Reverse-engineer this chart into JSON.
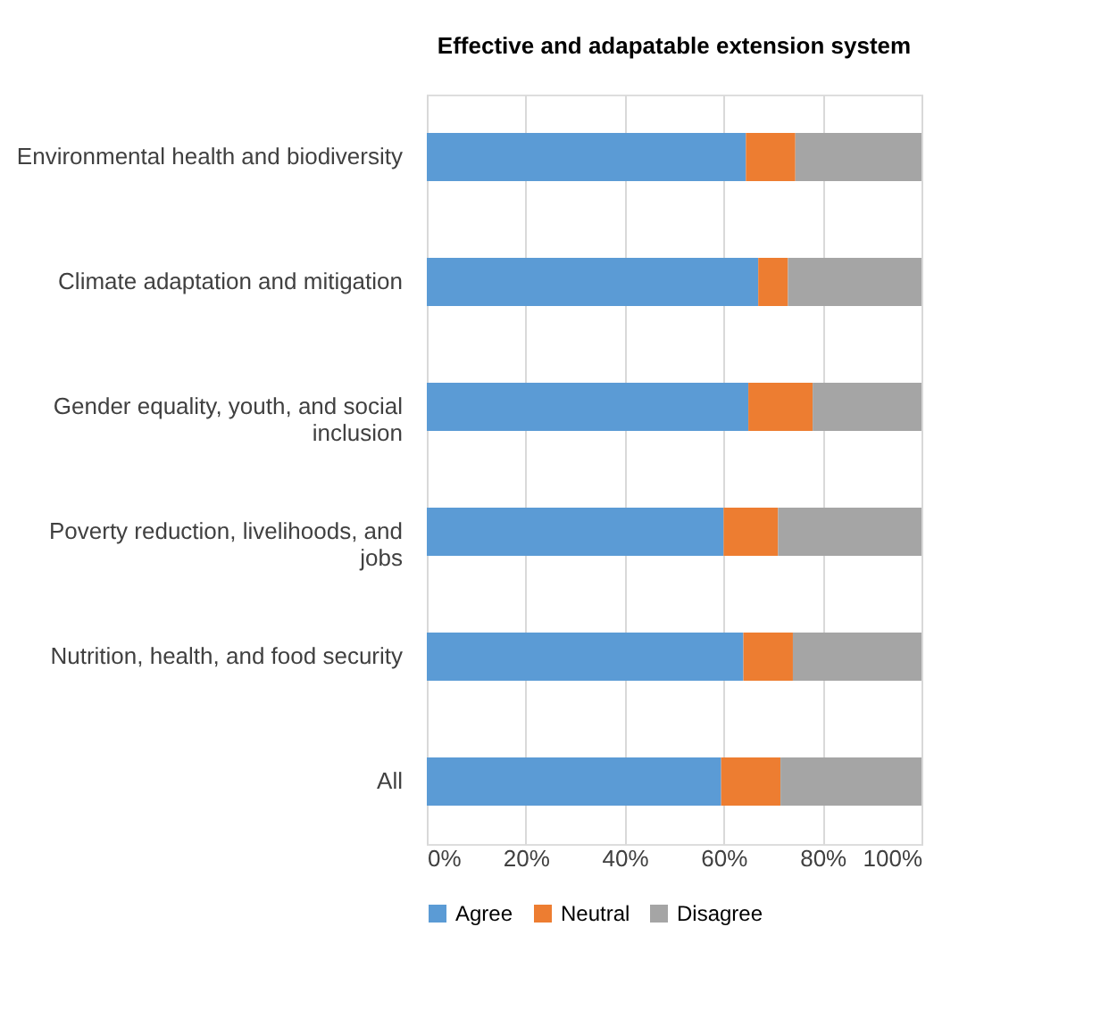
{
  "chart_data": {
    "type": "bar",
    "orientation": "horizontal",
    "stacked": true,
    "title": "Effective and adapatable extension system",
    "categories": [
      "Environmental health and biodiversity",
      "Climate adaptation and mitigation",
      "Gender equality, youth, and social inclusion",
      "Poverty reduction, livelihoods, and jobs",
      "Nutrition, health, and food security",
      "All"
    ],
    "series": [
      {
        "name": "Agree",
        "color": "#5b9bd5",
        "values": [
          64.5,
          67,
          65,
          60,
          64,
          59.5
        ]
      },
      {
        "name": "Neutral",
        "color": "#ed7d31",
        "values": [
          10,
          6,
          13,
          11,
          10,
          12
        ]
      },
      {
        "name": "Disagree",
        "color": "#a5a5a5",
        "values": [
          25.5,
          27,
          22,
          29,
          26,
          28.5
        ]
      }
    ],
    "xlim": [
      0,
      100
    ],
    "xticks": [
      {
        "value": 0,
        "label": "0%"
      },
      {
        "value": 20,
        "label": "20%"
      },
      {
        "value": 40,
        "label": "40%"
      },
      {
        "value": 60,
        "label": "60%"
      },
      {
        "value": 80,
        "label": "80%"
      },
      {
        "value": 100,
        "label": "100%"
      }
    ],
    "grid": "x",
    "legend": "bottom"
  }
}
